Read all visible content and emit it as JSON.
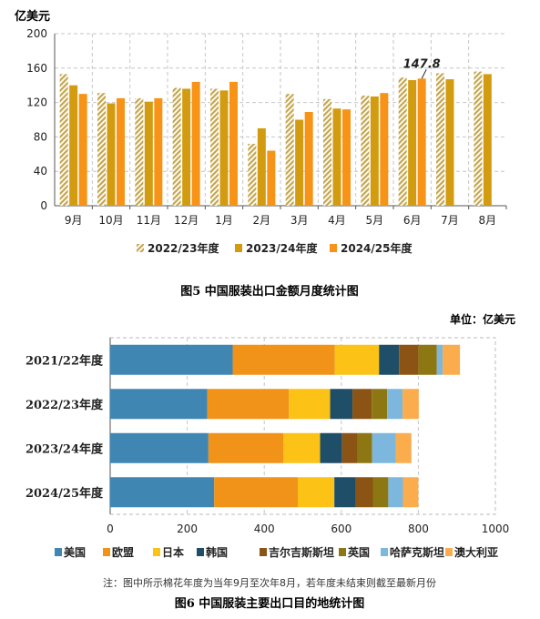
{
  "colors": {
    "y2223": "#c4a64e",
    "y2324": "#d39c10",
    "y2425": "#f79316",
    "grid": "#c6c6c6",
    "axis": "#555555"
  },
  "chart_data": [
    {
      "type": "bar",
      "title": "图5   中国服装出口金额月度统计图",
      "ylabel": "亿美元",
      "ylim": [
        0,
        200
      ],
      "yticks": [
        "0",
        "40",
        "80",
        "120",
        "160",
        "200"
      ],
      "categories": [
        "9月",
        "10月",
        "11月",
        "12月",
        "1月",
        "2月",
        "3月",
        "4月",
        "5月",
        "6月",
        "7月",
        "8月"
      ],
      "series": [
        {
          "name": "2022/23年度",
          "pattern": "hatched",
          "values": [
            153,
            131,
            125,
            137,
            136,
            72,
            130,
            124,
            128,
            149,
            154,
            156
          ]
        },
        {
          "name": "2023/24年度",
          "values": [
            140,
            119,
            121,
            136,
            134,
            90,
            100,
            113,
            127,
            146,
            147,
            153
          ]
        },
        {
          "name": "2024/25年度",
          "values": [
            130,
            125,
            125,
            144,
            144,
            64,
            109,
            112,
            131,
            147.8,
            null,
            null
          ]
        }
      ],
      "annotations": [
        {
          "text": "147.8",
          "category": "6月",
          "series": "2024/25年度"
        }
      ],
      "grid": true,
      "legend_position": "bottom"
    },
    {
      "type": "bar",
      "orientation": "horizontal",
      "stacked": true,
      "title": "图6   中国服装主要出口目的地统计图",
      "unit_label": "单位：亿美元",
      "xlim": [
        0,
        1000
      ],
      "xticks": [
        "0",
        "200",
        "400",
        "600",
        "800",
        "1000"
      ],
      "categories": [
        "2021/22年度",
        "2022/23年度",
        "2023/24年度",
        "2024/25年度"
      ],
      "series": [
        {
          "name": "美国",
          "color": "#3f86b3",
          "values": [
            318,
            252,
            255,
            270
          ]
        },
        {
          "name": "欧盟",
          "color": "#f19219",
          "values": [
            265,
            212,
            195,
            217
          ]
        },
        {
          "name": "日本",
          "color": "#fcc216",
          "values": [
            115,
            107,
            95,
            95
          ]
        },
        {
          "name": "韩国",
          "color": "#1f4e68",
          "values": [
            52,
            58,
            57,
            55
          ]
        },
        {
          "name": "吉尔吉斯斯坦",
          "color": "#8c5414",
          "values": [
            50,
            50,
            40,
            45
          ]
        },
        {
          "name": "英国",
          "color": "#8c7713",
          "values": [
            48,
            40,
            38,
            40
          ]
        },
        {
          "name": "哈萨克斯坦",
          "color": "#7db7dd",
          "values": [
            15,
            40,
            62,
            38
          ]
        },
        {
          "name": "澳大利亚",
          "color": "#fbad4d",
          "values": [
            45,
            42,
            40,
            40
          ]
        }
      ],
      "grid": true,
      "legend_position": "bottom"
    }
  ],
  "note": "注：图中所示棉花年度为当年9月至次年8月，若年度未结束则截至最新月份"
}
